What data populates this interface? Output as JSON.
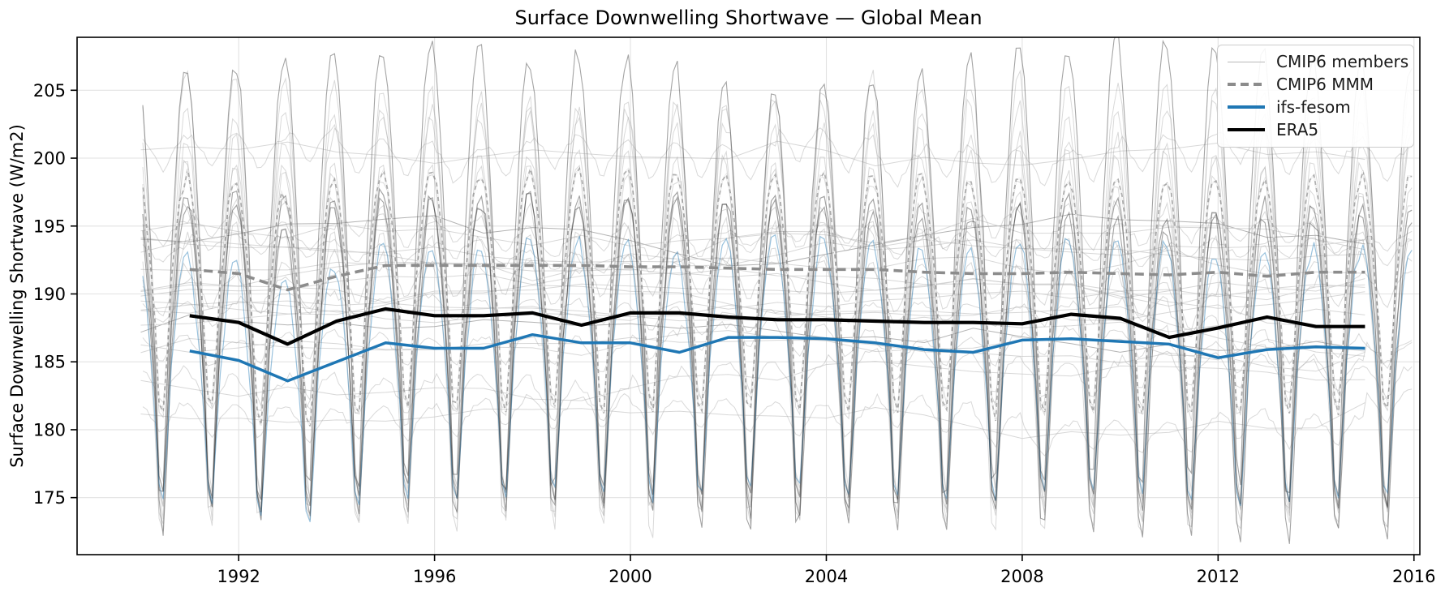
{
  "chart_data": {
    "type": "line",
    "title": "Surface Downwelling Shortwave — Global Mean",
    "xlabel": "",
    "ylabel": "Surface Downwelling Shortwave (W/m2)",
    "xlim": [
      1988.7,
      2016.12
    ],
    "ylim": [
      170.8,
      208.9
    ],
    "xticks": [
      1992,
      1996,
      2000,
      2004,
      2008,
      2012,
      2016
    ],
    "yticks": [
      175,
      180,
      185,
      190,
      195,
      200,
      205
    ],
    "grid": true,
    "grid_color": "#e2e2e2",
    "legend": {
      "position": "upper right",
      "entries": [
        {
          "label": "CMIP6 members",
          "color": "#b9b9b9",
          "style": "solid",
          "lw": 1.5
        },
        {
          "label": "CMIP6 MMM",
          "color": "#8c8c8c",
          "style": "dashed",
          "lw": 3.6
        },
        {
          "label": "ifs-fesom",
          "color": "#1f77b4",
          "style": "solid",
          "lw": 3.5
        },
        {
          "label": "ERA5",
          "color": "#000000",
          "style": "solid",
          "lw": 4.2
        }
      ]
    },
    "years": [
      1991,
      1992,
      1993,
      1994,
      1995,
      1996,
      1997,
      1998,
      1999,
      2000,
      2001,
      2002,
      2003,
      2004,
      2005,
      2006,
      2007,
      2008,
      2009,
      2010,
      2011,
      2012,
      2013,
      2014,
      2015
    ],
    "series": [
      {
        "name": "CMIP6 MMM",
        "color": "#8c8c8c",
        "style": "dashed",
        "lw": 3.6,
        "values": [
          191.8,
          191.5,
          190.3,
          191.3,
          192.1,
          192.1,
          192.1,
          192.1,
          192.1,
          192.0,
          192.0,
          191.9,
          191.8,
          191.8,
          191.8,
          191.6,
          191.5,
          191.5,
          191.6,
          191.5,
          191.4,
          191.6,
          191.3,
          191.6,
          191.6
        ]
      },
      {
        "name": "ifs-fesom",
        "color": "#1f77b4",
        "style": "solid",
        "lw": 3.5,
        "values": [
          185.8,
          185.1,
          183.6,
          185.0,
          186.4,
          186.0,
          186.0,
          187.0,
          186.4,
          186.4,
          185.7,
          186.8,
          186.8,
          186.7,
          186.4,
          185.9,
          185.7,
          186.6,
          186.7,
          186.5,
          186.3,
          185.3,
          185.9,
          186.1,
          186.0
        ]
      },
      {
        "name": "ERA5",
        "color": "#000000",
        "style": "solid",
        "lw": 4.2,
        "values": [
          188.4,
          187.9,
          186.3,
          188.0,
          188.9,
          188.4,
          188.4,
          188.6,
          187.7,
          188.6,
          188.6,
          188.3,
          188.1,
          188.1,
          188.0,
          187.9,
          187.9,
          187.8,
          188.5,
          188.2,
          186.8,
          187.5,
          188.3,
          187.6,
          187.6
        ]
      }
    ],
    "ensemble": {
      "label": "CMIP6 members",
      "monthly_span": [
        1990,
        2016
      ],
      "seasonal": {
        "peak_frac": 0.93,
        "trough_frac": 0.43,
        "down_up_ratio": 1.55,
        "peak_exp": 0.75,
        "trough_exp": 2.2
      },
      "light_color": "#ababab",
      "dark_color": "#5a5a5a",
      "members": [
        [
          194.3,
          13.0,
          "dark"
        ],
        [
          193.2,
          12.2,
          "light"
        ],
        [
          191.8,
          11.5,
          "light"
        ],
        [
          191.0,
          11.0,
          "light"
        ],
        [
          189.6,
          10.6,
          "light"
        ],
        [
          189.0,
          10.0,
          "light"
        ],
        [
          187.6,
          9.3,
          "dark"
        ],
        [
          186.6,
          8.6,
          "light"
        ],
        [
          190.6,
          6.2,
          "light"
        ],
        [
          188.2,
          4.2,
          "light"
        ],
        [
          199.6,
          1.0,
          "light"
        ],
        [
          194.3,
          0.7,
          "light"
        ],
        [
          193.6,
          0.5,
          "light"
        ],
        [
          190.3,
          1.0,
          "light"
        ],
        [
          188.7,
          0.6,
          "light"
        ],
        [
          186.2,
          0.8,
          "light"
        ],
        [
          183.2,
          1.0,
          "light"
        ],
        [
          181.0,
          0.9,
          "light"
        ]
      ]
    },
    "monthly_overlays": [
      {
        "name": "CMIP6 MMM monthly",
        "base": "CMIP6 MMM",
        "amp": 7.0,
        "style": "gray-with-white-dashes"
      },
      {
        "name": "ifs-fesom monthly",
        "base": "ifs-fesom",
        "amp": 7.4,
        "color": "#1f77b4",
        "opacity": 0.45
      },
      {
        "name": "ERA5 monthly",
        "base": "ERA5",
        "amp": 8.8,
        "color": "#1a1a1a",
        "opacity": 0.4
      }
    ]
  }
}
